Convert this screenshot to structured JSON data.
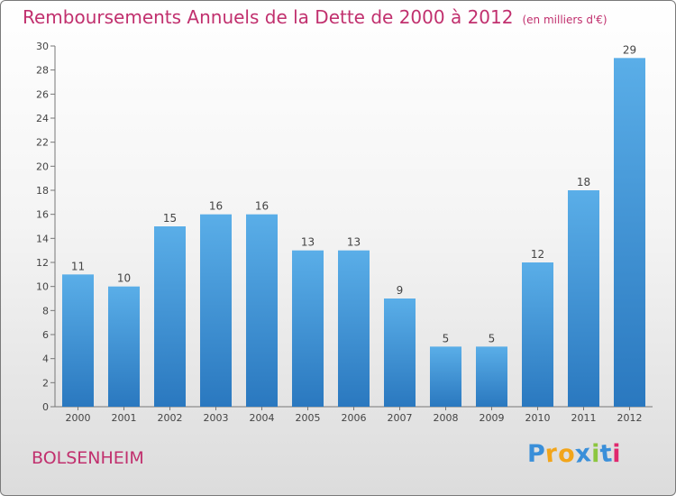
{
  "title": "Remboursements Annuels de la Dette de 2000 à 2012",
  "unit": "(en milliers d'€)",
  "city": "BOLSENHEIM",
  "logo": {
    "text": "Proxiti",
    "letter_colors": [
      "#3a8fd9",
      "#f2a51a",
      "#f2a51a",
      "#3a8fd9",
      "#8cc63f",
      "#3a8fd9",
      "#e0286e"
    ]
  },
  "colors": {
    "bar_top": "#5aaee8",
    "bar_bottom": "#2a78bf",
    "text": "#c1306e"
  },
  "chart_data": {
    "type": "bar",
    "title": "Remboursements Annuels de la Dette de 2000 à 2012",
    "categories": [
      "2000",
      "2001",
      "2002",
      "2003",
      "2004",
      "2005",
      "2006",
      "2007",
      "2008",
      "2009",
      "2010",
      "2011",
      "2012"
    ],
    "values": [
      11,
      10,
      15,
      16,
      16,
      13,
      13,
      9,
      5,
      5,
      12,
      18,
      29
    ],
    "ylim": [
      0,
      30
    ],
    "yticks": [
      0,
      2,
      4,
      6,
      8,
      10,
      12,
      14,
      16,
      18,
      20,
      22,
      24,
      26,
      28,
      30
    ],
    "xlabel": "",
    "ylabel": "",
    "grid": false,
    "legend": "none"
  }
}
